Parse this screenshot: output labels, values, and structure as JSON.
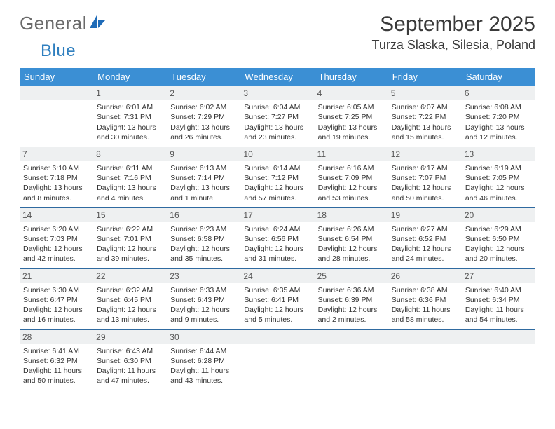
{
  "brand": {
    "name1": "General",
    "name2": "Blue"
  },
  "title": "September 2025",
  "location": "Turza Slaska, Silesia, Poland",
  "colors": {
    "header_bg": "#3b8fd4",
    "header_text": "#ffffff",
    "daynum_bg": "#eef0f1",
    "daynum_border": "#2f6aa0",
    "body_text": "#333333",
    "logo_gray": "#6a6a6a",
    "logo_blue": "#2f7fbf"
  },
  "days_of_week": [
    "Sunday",
    "Monday",
    "Tuesday",
    "Wednesday",
    "Thursday",
    "Friday",
    "Saturday"
  ],
  "weeks": [
    [
      {
        "n": "",
        "sunrise": "",
        "sunset": "",
        "daylight": ""
      },
      {
        "n": "1",
        "sunrise": "Sunrise: 6:01 AM",
        "sunset": "Sunset: 7:31 PM",
        "daylight": "Daylight: 13 hours and 30 minutes."
      },
      {
        "n": "2",
        "sunrise": "Sunrise: 6:02 AM",
        "sunset": "Sunset: 7:29 PM",
        "daylight": "Daylight: 13 hours and 26 minutes."
      },
      {
        "n": "3",
        "sunrise": "Sunrise: 6:04 AM",
        "sunset": "Sunset: 7:27 PM",
        "daylight": "Daylight: 13 hours and 23 minutes."
      },
      {
        "n": "4",
        "sunrise": "Sunrise: 6:05 AM",
        "sunset": "Sunset: 7:25 PM",
        "daylight": "Daylight: 13 hours and 19 minutes."
      },
      {
        "n": "5",
        "sunrise": "Sunrise: 6:07 AM",
        "sunset": "Sunset: 7:22 PM",
        "daylight": "Daylight: 13 hours and 15 minutes."
      },
      {
        "n": "6",
        "sunrise": "Sunrise: 6:08 AM",
        "sunset": "Sunset: 7:20 PM",
        "daylight": "Daylight: 13 hours and 12 minutes."
      }
    ],
    [
      {
        "n": "7",
        "sunrise": "Sunrise: 6:10 AM",
        "sunset": "Sunset: 7:18 PM",
        "daylight": "Daylight: 13 hours and 8 minutes."
      },
      {
        "n": "8",
        "sunrise": "Sunrise: 6:11 AM",
        "sunset": "Sunset: 7:16 PM",
        "daylight": "Daylight: 13 hours and 4 minutes."
      },
      {
        "n": "9",
        "sunrise": "Sunrise: 6:13 AM",
        "sunset": "Sunset: 7:14 PM",
        "daylight": "Daylight: 13 hours and 1 minute."
      },
      {
        "n": "10",
        "sunrise": "Sunrise: 6:14 AM",
        "sunset": "Sunset: 7:12 PM",
        "daylight": "Daylight: 12 hours and 57 minutes."
      },
      {
        "n": "11",
        "sunrise": "Sunrise: 6:16 AM",
        "sunset": "Sunset: 7:09 PM",
        "daylight": "Daylight: 12 hours and 53 minutes."
      },
      {
        "n": "12",
        "sunrise": "Sunrise: 6:17 AM",
        "sunset": "Sunset: 7:07 PM",
        "daylight": "Daylight: 12 hours and 50 minutes."
      },
      {
        "n": "13",
        "sunrise": "Sunrise: 6:19 AM",
        "sunset": "Sunset: 7:05 PM",
        "daylight": "Daylight: 12 hours and 46 minutes."
      }
    ],
    [
      {
        "n": "14",
        "sunrise": "Sunrise: 6:20 AM",
        "sunset": "Sunset: 7:03 PM",
        "daylight": "Daylight: 12 hours and 42 minutes."
      },
      {
        "n": "15",
        "sunrise": "Sunrise: 6:22 AM",
        "sunset": "Sunset: 7:01 PM",
        "daylight": "Daylight: 12 hours and 39 minutes."
      },
      {
        "n": "16",
        "sunrise": "Sunrise: 6:23 AM",
        "sunset": "Sunset: 6:58 PM",
        "daylight": "Daylight: 12 hours and 35 minutes."
      },
      {
        "n": "17",
        "sunrise": "Sunrise: 6:24 AM",
        "sunset": "Sunset: 6:56 PM",
        "daylight": "Daylight: 12 hours and 31 minutes."
      },
      {
        "n": "18",
        "sunrise": "Sunrise: 6:26 AM",
        "sunset": "Sunset: 6:54 PM",
        "daylight": "Daylight: 12 hours and 28 minutes."
      },
      {
        "n": "19",
        "sunrise": "Sunrise: 6:27 AM",
        "sunset": "Sunset: 6:52 PM",
        "daylight": "Daylight: 12 hours and 24 minutes."
      },
      {
        "n": "20",
        "sunrise": "Sunrise: 6:29 AM",
        "sunset": "Sunset: 6:50 PM",
        "daylight": "Daylight: 12 hours and 20 minutes."
      }
    ],
    [
      {
        "n": "21",
        "sunrise": "Sunrise: 6:30 AM",
        "sunset": "Sunset: 6:47 PM",
        "daylight": "Daylight: 12 hours and 16 minutes."
      },
      {
        "n": "22",
        "sunrise": "Sunrise: 6:32 AM",
        "sunset": "Sunset: 6:45 PM",
        "daylight": "Daylight: 12 hours and 13 minutes."
      },
      {
        "n": "23",
        "sunrise": "Sunrise: 6:33 AM",
        "sunset": "Sunset: 6:43 PM",
        "daylight": "Daylight: 12 hours and 9 minutes."
      },
      {
        "n": "24",
        "sunrise": "Sunrise: 6:35 AM",
        "sunset": "Sunset: 6:41 PM",
        "daylight": "Daylight: 12 hours and 5 minutes."
      },
      {
        "n": "25",
        "sunrise": "Sunrise: 6:36 AM",
        "sunset": "Sunset: 6:39 PM",
        "daylight": "Daylight: 12 hours and 2 minutes."
      },
      {
        "n": "26",
        "sunrise": "Sunrise: 6:38 AM",
        "sunset": "Sunset: 6:36 PM",
        "daylight": "Daylight: 11 hours and 58 minutes."
      },
      {
        "n": "27",
        "sunrise": "Sunrise: 6:40 AM",
        "sunset": "Sunset: 6:34 PM",
        "daylight": "Daylight: 11 hours and 54 minutes."
      }
    ],
    [
      {
        "n": "28",
        "sunrise": "Sunrise: 6:41 AM",
        "sunset": "Sunset: 6:32 PM",
        "daylight": "Daylight: 11 hours and 50 minutes."
      },
      {
        "n": "29",
        "sunrise": "Sunrise: 6:43 AM",
        "sunset": "Sunset: 6:30 PM",
        "daylight": "Daylight: 11 hours and 47 minutes."
      },
      {
        "n": "30",
        "sunrise": "Sunrise: 6:44 AM",
        "sunset": "Sunset: 6:28 PM",
        "daylight": "Daylight: 11 hours and 43 minutes."
      },
      {
        "n": "",
        "sunrise": "",
        "sunset": "",
        "daylight": ""
      },
      {
        "n": "",
        "sunrise": "",
        "sunset": "",
        "daylight": ""
      },
      {
        "n": "",
        "sunrise": "",
        "sunset": "",
        "daylight": ""
      },
      {
        "n": "",
        "sunrise": "",
        "sunset": "",
        "daylight": ""
      }
    ]
  ]
}
